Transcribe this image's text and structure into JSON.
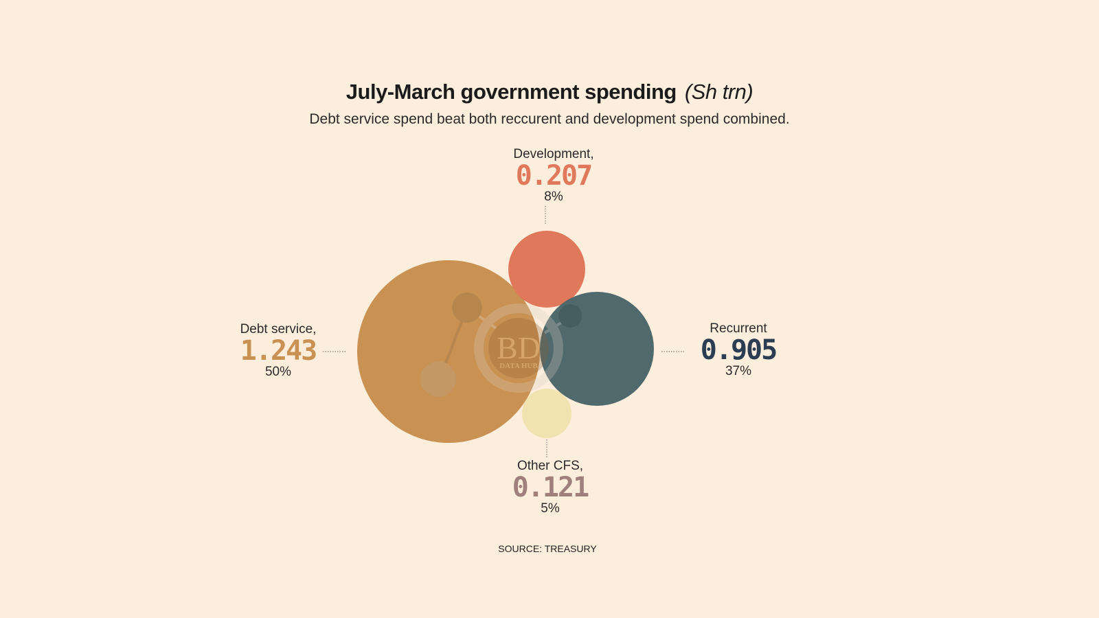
{
  "chart_data": {
    "type": "bubble",
    "title": "July-March government spending",
    "unit": "(Sh trn)",
    "subtitle": "Debt service spend beat both reccurent and development spend combined.",
    "series": [
      {
        "name": "Debt service,",
        "value": "1.243",
        "share": "50%",
        "color": "#C99152",
        "value_color": "#C99152"
      },
      {
        "name": "Development,",
        "value": "0.207",
        "share": "8%",
        "color": "#E0785C",
        "value_color": "#E0785C"
      },
      {
        "name": "Recurrent",
        "value": "0.905",
        "share": "37%",
        "color": "#4A6468",
        "value_color": "#2B3D52"
      },
      {
        "name": "Other CFS,",
        "value": "0.121",
        "share": "5%",
        "color": "#F0E3B0",
        "value_color": "#A0807C"
      }
    ],
    "source": "SOURCE: TREASURY"
  },
  "watermark": {
    "logo": "BD",
    "text": "DATA HUB"
  }
}
